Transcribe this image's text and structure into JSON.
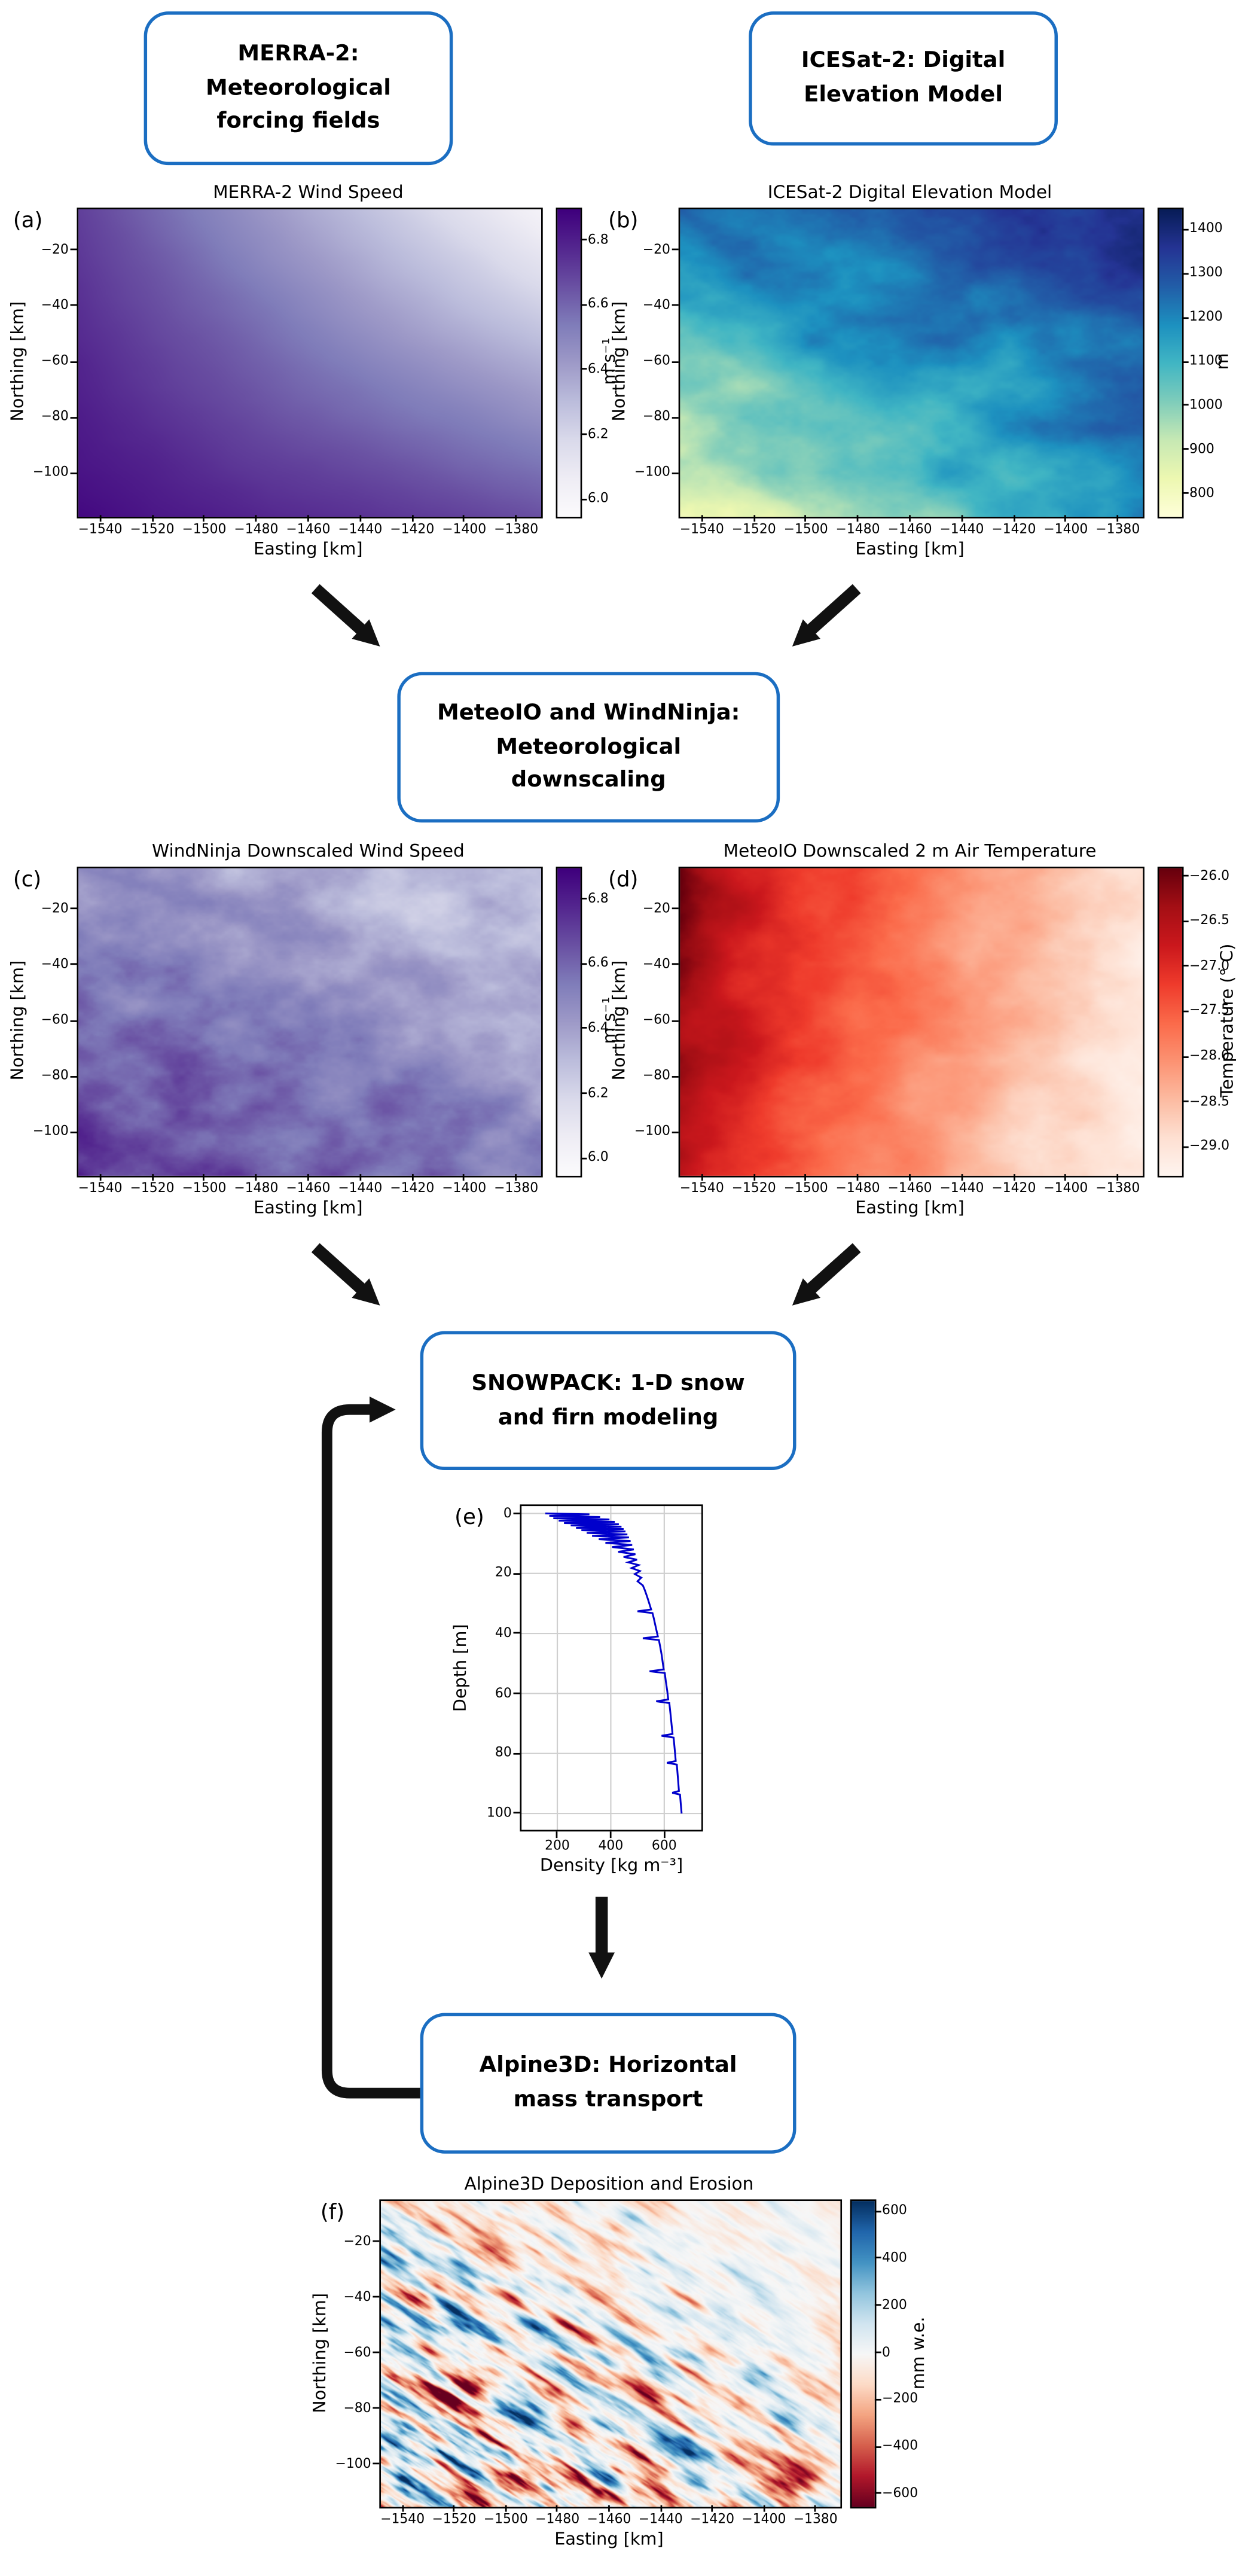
{
  "figure": {
    "background": "#ffffff",
    "accent_color": "#1b6ec2",
    "arrow_color": "#111111"
  },
  "flow_boxes": {
    "merra2": {
      "lines": [
        "MERRA-2:",
        "Meteorological",
        "forcing fields"
      ]
    },
    "icesat2": {
      "lines": [
        "ICESat-2: Digital",
        "Elevation Model"
      ]
    },
    "meteoio": {
      "lines": [
        "MeteoIO and WindNinja:",
        "Meteorological",
        "downscaling"
      ]
    },
    "snowpack": {
      "lines": [
        "SNOWPACK: 1-D snow",
        "and firn modeling"
      ]
    },
    "alpine3d": {
      "lines": [
        "Alpine3D: Horizontal",
        "mass transport"
      ]
    }
  },
  "flow_edges": [
    {
      "from": "panel-a",
      "to": "box-meteoio"
    },
    {
      "from": "panel-b",
      "to": "box-meteoio"
    },
    {
      "from": "panel-c",
      "to": "box-snowpack"
    },
    {
      "from": "panel-d",
      "to": "box-snowpack"
    },
    {
      "from": "panel-e",
      "to": "box-alpine3d"
    },
    {
      "from": "box-alpine3d",
      "to": "box-snowpack",
      "style": "feedback-loop"
    }
  ],
  "colormaps": {
    "purples": [
      "#fcfbfd",
      "#efedf5",
      "#dadaeb",
      "#bcbddc",
      "#9e9ac8",
      "#807dba",
      "#6a51a3",
      "#54278f",
      "#3f007d"
    ],
    "ylgnbu": [
      "#ffffd9",
      "#edf8b1",
      "#c7e9b4",
      "#7fcdbb",
      "#41b6c4",
      "#1d91c0",
      "#225ea8",
      "#253494",
      "#081d58"
    ],
    "reds": [
      "#fff5f0",
      "#fee0d2",
      "#fcbba1",
      "#fc9272",
      "#fb6a4a",
      "#ef3b2c",
      "#cb181d",
      "#a50f15",
      "#67000d"
    ],
    "rdbu": [
      "#67001f",
      "#b2182b",
      "#d6604d",
      "#f4a582",
      "#fddbc7",
      "#f7f7f7",
      "#d1e5f0",
      "#92c5de",
      "#4393c3",
      "#2166ac",
      "#053061"
    ]
  },
  "chart_data": [
    {
      "id": "a",
      "type": "heatmap",
      "corner_label": "(a)",
      "title": "MERRA-2 Wind Speed",
      "xlabel": "Easting [km]",
      "ylabel": "Northing [km]",
      "xlim": [
        -1549,
        -1371
      ],
      "ylim": [
        -115,
        -5
      ],
      "xticks": [
        -1540,
        -1520,
        -1500,
        -1480,
        -1460,
        -1440,
        -1420,
        -1400,
        -1380
      ],
      "xtick_labels": [
        "−1540",
        "−1520",
        "−1500",
        "−1480",
        "−1460",
        "−1440",
        "−1420",
        "−1400",
        "−1380"
      ],
      "yticks": [
        -20,
        -40,
        -60,
        -80,
        -100
      ],
      "ytick_labels": [
        "−20",
        "−40",
        "−60",
        "−80",
        "−100"
      ],
      "cbar": {
        "label": "m s⁻¹",
        "vmin": 5.95,
        "vmax": 6.9,
        "ticks": [
          6.8,
          6.6,
          6.4,
          6.2,
          6.0
        ],
        "tick_labels": [
          "6.8",
          "6.6",
          "6.4",
          "6.2",
          "6.0"
        ],
        "colormap": "purples"
      },
      "field": {
        "kind": "bilinear",
        "corners": [
          0.8,
          0.08,
          0.97,
          0.75
        ],
        "noise_amp": 0.02,
        "noise_scale": 3,
        "seed": 11
      },
      "description": "Smooth diagonal gradient: wind speed highest (dark purple, ~6.9 m/s) toward southwest, lowest (light, ~6.0 m/s) at northeast corner."
    },
    {
      "id": "b",
      "type": "heatmap",
      "corner_label": "(b)",
      "title": "ICESat-2 Digital Elevation Model",
      "xlabel": "Easting [km]",
      "ylabel": "Northing [km]",
      "xlim": [
        -1549,
        -1371
      ],
      "ylim": [
        -115,
        -5
      ],
      "xticks": [
        -1540,
        -1520,
        -1500,
        -1480,
        -1460,
        -1440,
        -1420,
        -1400,
        -1380
      ],
      "xtick_labels": [
        "−1540",
        "−1520",
        "−1500",
        "−1480",
        "−1460",
        "−1440",
        "−1420",
        "−1400",
        "−1380"
      ],
      "yticks": [
        -20,
        -40,
        -60,
        -80,
        -100
      ],
      "ytick_labels": [
        "−20",
        "−40",
        "−60",
        "−80",
        "−100"
      ],
      "cbar": {
        "label": "m",
        "vmin": 750,
        "vmax": 1450,
        "ticks": [
          1400,
          1300,
          1200,
          1100,
          1000,
          900,
          800
        ],
        "tick_labels": [
          "1400",
          "1300",
          "1200",
          "1100",
          "1000",
          "900",
          "800"
        ],
        "colormap": "ylgnbu"
      },
      "field": {
        "kind": "bilinear",
        "corners": [
          0.72,
          0.9,
          0.12,
          0.62
        ],
        "noise_amp": 0.13,
        "noise_scale": 7,
        "seed": 22
      },
      "description": "Elevation rises from ~750 m (yellow, southwest corner) to ~1450 m (dark blue, northeast), with rough terrain texture."
    },
    {
      "id": "c",
      "type": "heatmap",
      "corner_label": "(c)",
      "title": "WindNinja Downscaled Wind Speed",
      "xlabel": "Easting [km]",
      "ylabel": "Northing [km]",
      "xlim": [
        -1549,
        -1371
      ],
      "ylim": [
        -115,
        -5
      ],
      "xticks": [
        -1540,
        -1520,
        -1500,
        -1480,
        -1460,
        -1440,
        -1420,
        -1400,
        -1380
      ],
      "xtick_labels": [
        "−1540",
        "−1520",
        "−1500",
        "−1480",
        "−1460",
        "−1440",
        "−1420",
        "−1400",
        "−1380"
      ],
      "yticks": [
        -20,
        -40,
        -60,
        -80,
        -100
      ],
      "ytick_labels": [
        "−20",
        "−40",
        "−60",
        "−80",
        "−100"
      ],
      "cbar": {
        "label": "m s⁻¹",
        "vmin": 5.95,
        "vmax": 6.9,
        "ticks": [
          6.8,
          6.6,
          6.4,
          6.2,
          6.0
        ],
        "tick_labels": [
          "6.8",
          "6.6",
          "6.4",
          "6.2",
          "6.0"
        ],
        "colormap": "purples"
      },
      "field": {
        "kind": "bilinear",
        "corners": [
          0.55,
          0.3,
          0.82,
          0.6
        ],
        "noise_amp": 0.16,
        "noise_scale": 9,
        "seed": 33
      },
      "description": "Same diagonal wind gradient as (a) but with fine terrain-induced speed texture after downscaling."
    },
    {
      "id": "d",
      "type": "heatmap",
      "corner_label": "(d)",
      "title": "MeteoIO Downscaled 2 m Air Temperature",
      "xlabel": "Easting [km]",
      "ylabel": "Northing [km]",
      "xlim": [
        -1549,
        -1371
      ],
      "ylim": [
        -115,
        -5
      ],
      "xticks": [
        -1540,
        -1520,
        -1500,
        -1480,
        -1460,
        -1440,
        -1420,
        -1400,
        -1380
      ],
      "xtick_labels": [
        "−1540",
        "−1520",
        "−1500",
        "−1480",
        "−1460",
        "−1440",
        "−1420",
        "−1400",
        "−1380"
      ],
      "yticks": [
        -20,
        -40,
        -60,
        -80,
        -100
      ],
      "ytick_labels": [
        "−20",
        "−40",
        "−60",
        "−80",
        "−100"
      ],
      "cbar": {
        "label": "Temperature (° C)",
        "vmin": -29.3,
        "vmax": -25.9,
        "ticks": [
          -26.0,
          -26.5,
          -27.0,
          -27.5,
          -28.0,
          -28.5,
          -29.0
        ],
        "tick_labels": [
          "−26.0",
          "−26.5",
          "−27.0",
          "−27.5",
          "−28.0",
          "−28.5",
          "−29.0"
        ],
        "colormap": "reds"
      },
      "field": {
        "kind": "bilinear",
        "corners": [
          0.92,
          0.1,
          0.8,
          0.03
        ],
        "noise_amp": 0.1,
        "noise_scale": 8,
        "seed": 44,
        "upow": 0.85
      },
      "description": "Air temperature warmest (~−26 °C, dark red) along western edge, coldest (~−29 °C, near white) to the east, with terrain texture."
    },
    {
      "id": "e",
      "type": "line",
      "corner_label": "(e)",
      "xlabel": "Density [kg m⁻³]",
      "ylabel": "Depth [m]",
      "xlim": [
        60,
        745
      ],
      "y_top": -3,
      "y_bottom": 106,
      "xticks": [
        200,
        400,
        600
      ],
      "xtick_labels": [
        "200",
        "400",
        "600"
      ],
      "yticks": [
        0,
        20,
        40,
        60,
        80,
        100
      ],
      "ytick_labels": [
        "0",
        "20",
        "40",
        "60",
        "80",
        "100"
      ],
      "line_color": "#0000cc",
      "grid": true,
      "points": [
        [
          155,
          0
        ],
        [
          320,
          0.3
        ],
        [
          170,
          0.8
        ],
        [
          360,
          1.2
        ],
        [
          185,
          1.6
        ],
        [
          395,
          2.0
        ],
        [
          205,
          2.4
        ],
        [
          415,
          2.8
        ],
        [
          225,
          3.2
        ],
        [
          430,
          3.6
        ],
        [
          250,
          4.0
        ],
        [
          440,
          4.4
        ],
        [
          270,
          4.8
        ],
        [
          448,
          5.2
        ],
        [
          290,
          5.6
        ],
        [
          455,
          6.0
        ],
        [
          310,
          6.5
        ],
        [
          462,
          7.0
        ],
        [
          330,
          7.5
        ],
        [
          468,
          8.0
        ],
        [
          355,
          8.6
        ],
        [
          474,
          9.2
        ],
        [
          380,
          9.8
        ],
        [
          480,
          10.5
        ],
        [
          405,
          11.2
        ],
        [
          486,
          12.0
        ],
        [
          428,
          12.8
        ],
        [
          492,
          13.6
        ],
        [
          448,
          14.5
        ],
        [
          498,
          15.4
        ],
        [
          465,
          16.3
        ],
        [
          504,
          17.2
        ],
        [
          478,
          18.2
        ],
        [
          509,
          19.2
        ],
        [
          490,
          20.2
        ],
        [
          514,
          21.4
        ],
        [
          500,
          22.6
        ],
        [
          520,
          24.0
        ],
        [
          527,
          25.5
        ],
        [
          533,
          27.0
        ],
        [
          539,
          28.6
        ],
        [
          545,
          30.3
        ],
        [
          551,
          32.0
        ],
        [
          500,
          32.6
        ],
        [
          556,
          33.2
        ],
        [
          561,
          35.0
        ],
        [
          566,
          37.0
        ],
        [
          571,
          39.0
        ],
        [
          576,
          41.0
        ],
        [
          520,
          41.6
        ],
        [
          580,
          42.2
        ],
        [
          585,
          44.5
        ],
        [
          590,
          47.0
        ],
        [
          594,
          49.5
        ],
        [
          598,
          52.0
        ],
        [
          545,
          52.6
        ],
        [
          602,
          53.2
        ],
        [
          606,
          56.0
        ],
        [
          611,
          59.0
        ],
        [
          615,
          62.0
        ],
        [
          570,
          62.6
        ],
        [
          619,
          63.2
        ],
        [
          623,
          66.5
        ],
        [
          627,
          70.0
        ],
        [
          631,
          73.5
        ],
        [
          590,
          74.1
        ],
        [
          635,
          74.7
        ],
        [
          639,
          78.5
        ],
        [
          643,
          82.5
        ],
        [
          610,
          83.1
        ],
        [
          647,
          83.7
        ],
        [
          651,
          88.0
        ],
        [
          655,
          92.5
        ],
        [
          630,
          93.1
        ],
        [
          659,
          93.7
        ],
        [
          662,
          97.0
        ],
        [
          665,
          100.0
        ]
      ],
      "description": "SNOWPACK firn density profile: noisy low-density layering (~150–480 kg/m³) in upper ~15 m, smooth densification to ~665 kg/m³ at 100 m depth, with thin low-density spikes."
    },
    {
      "id": "f",
      "type": "heatmap",
      "corner_label": "(f)",
      "title": "Alpine3D Deposition and Erosion",
      "xlabel": "Easting [km]",
      "ylabel": "Northing [km]",
      "xlim": [
        -1549,
        -1371
      ],
      "ylim": [
        -115,
        -5
      ],
      "xticks": [
        -1540,
        -1520,
        -1500,
        -1480,
        -1460,
        -1440,
        -1420,
        -1400,
        -1380
      ],
      "xtick_labels": [
        "−1540",
        "−1520",
        "−1500",
        "−1480",
        "−1460",
        "−1440",
        "−1420",
        "−1400",
        "−1380"
      ],
      "yticks": [
        -20,
        -40,
        -60,
        -80,
        -100
      ],
      "ytick_labels": [
        "−20",
        "−40",
        "−60",
        "−80",
        "−100"
      ],
      "cbar": {
        "label": "mm w.e.",
        "vmin": -650,
        "vmax": 650,
        "ticks": [
          600,
          400,
          200,
          0,
          -200,
          -400,
          -600
        ],
        "tick_labels": [
          "600",
          "400",
          "200",
          "0",
          "−200",
          "−400",
          "−600"
        ],
        "colormap": "rdbu"
      },
      "field": {
        "kind": "diverging_streaks",
        "along": 5,
        "across": 26,
        "seed": 55
      },
      "description": "Deposition (blue, up to +600 mm w.e.) and erosion (red, down to −600 mm w.e.) in diagonal streaks, strongest over rough terrain in the southwest, near-zero (white) in the northeast."
    }
  ]
}
